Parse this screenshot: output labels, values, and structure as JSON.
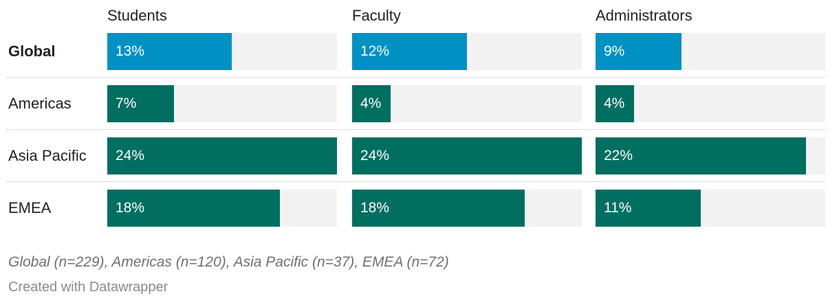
{
  "chart_data": {
    "type": "bar",
    "columns": [
      "Students",
      "Faculty",
      "Administrators"
    ],
    "rows": [
      {
        "label": "Global",
        "bold": true,
        "color": "#0091c4",
        "values": [
          13,
          12,
          9
        ]
      },
      {
        "label": "Americas",
        "bold": false,
        "color": "#006e61",
        "values": [
          7,
          4,
          4
        ]
      },
      {
        "label": "Asia Pacific",
        "bold": false,
        "color": "#006e61",
        "values": [
          24,
          24,
          22
        ]
      },
      {
        "label": "EMEA",
        "bold": false,
        "color": "#006e61",
        "values": [
          18,
          18,
          11
        ]
      }
    ],
    "value_suffix": "%",
    "xlim": [
      0,
      24
    ],
    "note": "Global (n=229), Americas (n=120), Asia Pacific (n=37), EMEA (n=72)",
    "credit": "Created with Datawrapper"
  }
}
